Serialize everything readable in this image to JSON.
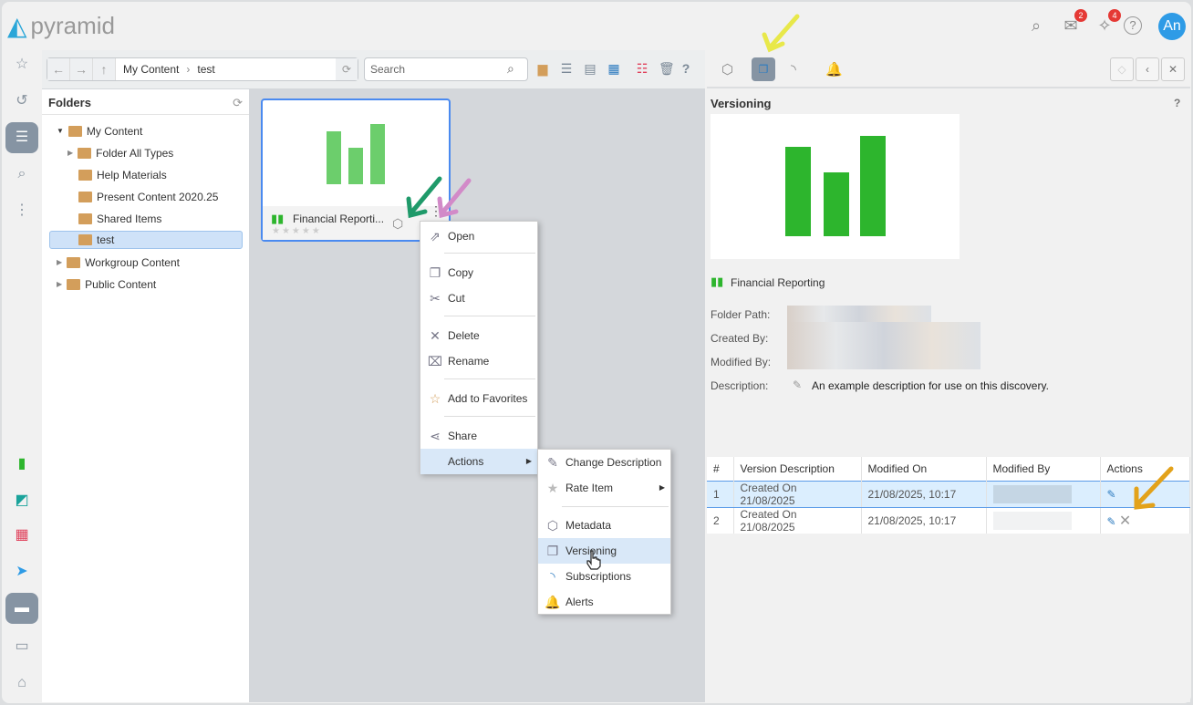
{
  "app": {
    "logo": "pyramid",
    "mail_badge": "2",
    "pin_badge": "4",
    "avatar": "An"
  },
  "toolbar": {
    "crumbs": [
      "My Content",
      "test"
    ],
    "search_placeholder": "Search",
    "help": "?"
  },
  "folders": {
    "title": "Folders",
    "items": [
      {
        "label": "My Content",
        "level": 0
      },
      {
        "label": "Folder All Types",
        "level": 1
      },
      {
        "label": "Help Materials",
        "level": 1
      },
      {
        "label": "Present Content 2020.25",
        "level": 1
      },
      {
        "label": "Shared Items",
        "level": 1
      },
      {
        "label": "test",
        "level": 1,
        "selected": true
      },
      {
        "label": "Workgroup Content",
        "level": 0
      },
      {
        "label": "Public Content",
        "level": 0
      }
    ]
  },
  "card": {
    "title": "Financial Reporti...",
    "rating": 0
  },
  "context_menu": [
    "Open",
    "Copy",
    "Cut",
    "Delete",
    "Rename",
    "Add to Favorites",
    "Share",
    "Actions"
  ],
  "submenu": [
    "Change Description",
    "Rate Item",
    "Metadata",
    "Versioning",
    "Subscriptions",
    "Alerts"
  ],
  "panel": {
    "title": "Versioning",
    "help": "?",
    "item_name": "Financial Reporting",
    "labels": {
      "folder": "Folder Path:",
      "created": "Created By:",
      "modified": "Modified By:",
      "description": "Description:"
    },
    "description": "An example description for use on this discovery.",
    "table": {
      "headers": [
        "#",
        "Version Description",
        "Modified On",
        "Modified By",
        "Actions"
      ],
      "rows": [
        {
          "n": "1",
          "desc": "Created On 21/08/2025",
          "on": "21/08/2025, 10:17"
        },
        {
          "n": "2",
          "desc": "Created On 21/08/2025",
          "on": "21/08/2025, 10:17"
        }
      ]
    }
  },
  "colors": {
    "accent": "#4a8af0",
    "chart_green": "#2db52d",
    "arrow_yellow": "#e8e84a",
    "arrow_orange": "#e3a21a",
    "arrow_teal": "#1f9a6a",
    "arrow_pink": "#d28ac8"
  }
}
